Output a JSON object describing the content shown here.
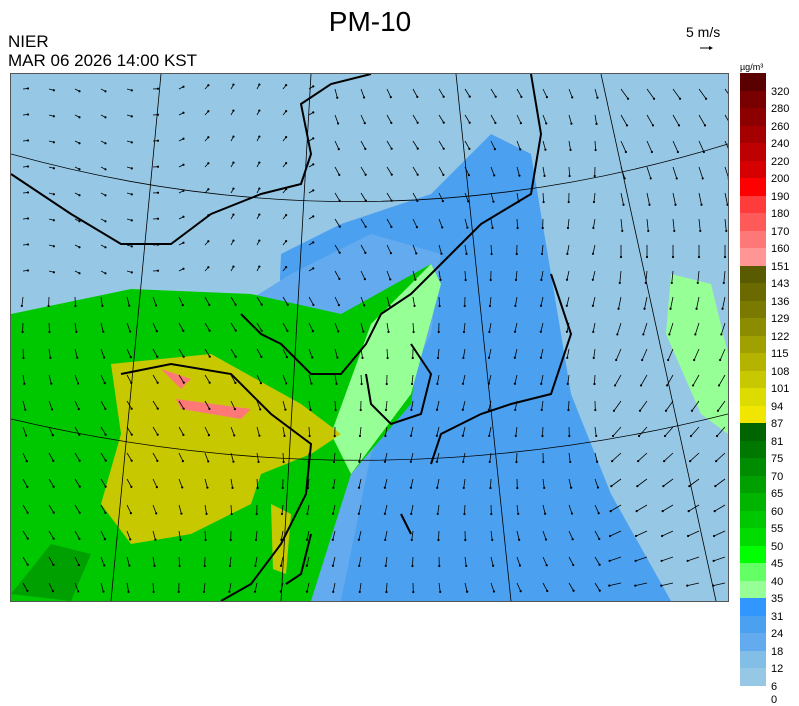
{
  "header": {
    "title": "PM-10",
    "organization": "NIER",
    "timestamp": "MAR 06 2026 14:00 KST",
    "wind_scale_label": "5 m/s",
    "unit_label": "µg/m³"
  },
  "map": {
    "region": "East Asia",
    "background_color": "#96c8e6",
    "wind_vectors": true,
    "coastline_color": "#000000"
  },
  "legend": {
    "bands": [
      {
        "label": "320",
        "color": "#5a0000"
      },
      {
        "label": "280",
        "color": "#780000"
      },
      {
        "label": "260",
        "color": "#8c0000"
      },
      {
        "label": "240",
        "color": "#a50000"
      },
      {
        "label": "220",
        "color": "#be0000"
      },
      {
        "label": "200",
        "color": "#d70000"
      },
      {
        "label": "190",
        "color": "#ff0000"
      },
      {
        "label": "180",
        "color": "#ff3c3c"
      },
      {
        "label": "170",
        "color": "#ff5a5a"
      },
      {
        "label": "160",
        "color": "#ff7878"
      },
      {
        "label": "151",
        "color": "#ff9696"
      },
      {
        "label": "143",
        "color": "#5a5a00"
      },
      {
        "label": "136",
        "color": "#6a6a00"
      },
      {
        "label": "129",
        "color": "#7a7a00"
      },
      {
        "label": "122",
        "color": "#8c8c00"
      },
      {
        "label": "115",
        "color": "#a0a000"
      },
      {
        "label": "108",
        "color": "#b4b400"
      },
      {
        "label": "101",
        "color": "#c8c800"
      },
      {
        "label": "94",
        "color": "#dcdc00"
      },
      {
        "label": "87",
        "color": "#f0e600"
      },
      {
        "label": "81",
        "color": "#006400"
      },
      {
        "label": "75",
        "color": "#007800"
      },
      {
        "label": "70",
        "color": "#008c00"
      },
      {
        "label": "65",
        "color": "#00a000"
      },
      {
        "label": "60",
        "color": "#00b400"
      },
      {
        "label": "55",
        "color": "#00c800"
      },
      {
        "label": "50",
        "color": "#00dc00"
      },
      {
        "label": "45",
        "color": "#00ff00"
      },
      {
        "label": "40",
        "color": "#64ff64"
      },
      {
        "label": "35",
        "color": "#96ff96"
      },
      {
        "label": "31",
        "color": "#3296ff"
      },
      {
        "label": "24",
        "color": "#4ba0f0"
      },
      {
        "label": "18",
        "color": "#64aaee"
      },
      {
        "label": "12",
        "color": "#82bee6"
      },
      {
        "label": "6",
        "color": "#96c8e6"
      },
      {
        "label": "0",
        "color": "#ffffff"
      }
    ]
  }
}
